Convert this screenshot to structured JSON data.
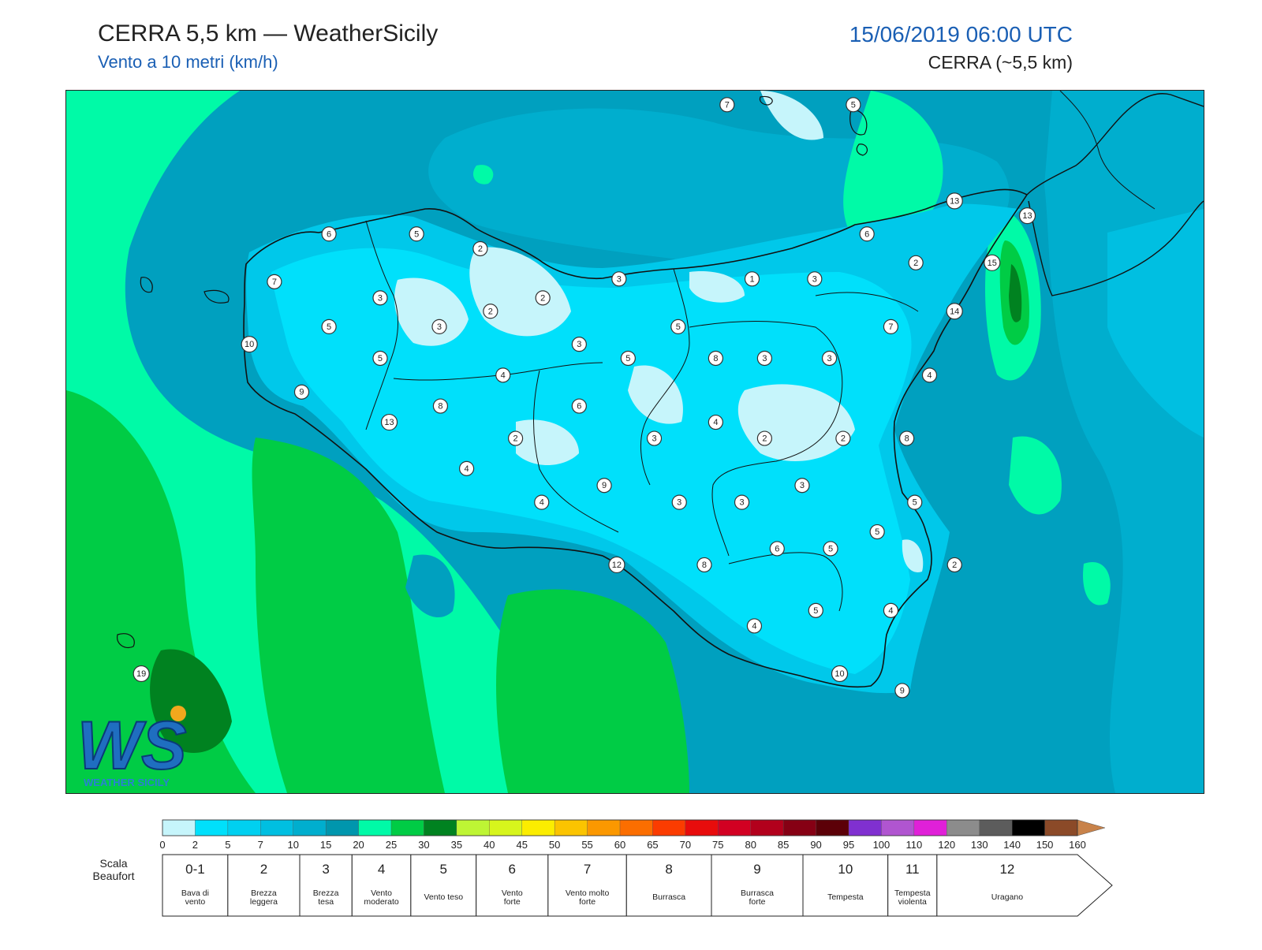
{
  "header": {
    "title": "CERRA 5,5 km — WeatherSicily",
    "subtitle": "Vento a 10 metri (km/h)",
    "datetime": "15/06/2019 06:00 UTC",
    "model": "CERRA (~5,5 km)"
  },
  "logo": {
    "mark": "WS",
    "name": "WEATHER SICILY"
  },
  "stations": [
    {
      "v": "7",
      "lon": 0.581,
      "lat": 0.02
    },
    {
      "v": "5",
      "lon": 0.692,
      "lat": 0.02
    },
    {
      "v": "13",
      "lon": 0.781,
      "lat": 0.157
    },
    {
      "v": "13",
      "lon": 0.845,
      "lat": 0.178
    },
    {
      "v": "6",
      "lon": 0.231,
      "lat": 0.204
    },
    {
      "v": "5",
      "lon": 0.308,
      "lat": 0.204
    },
    {
      "v": "2",
      "lon": 0.364,
      "lat": 0.225
    },
    {
      "v": "6",
      "lon": 0.704,
      "lat": 0.204
    },
    {
      "v": "2",
      "lon": 0.747,
      "lat": 0.245
    },
    {
      "v": "15",
      "lon": 0.814,
      "lat": 0.245
    },
    {
      "v": "7",
      "lon": 0.183,
      "lat": 0.272
    },
    {
      "v": "3",
      "lon": 0.486,
      "lat": 0.268
    },
    {
      "v": "1",
      "lon": 0.603,
      "lat": 0.268
    },
    {
      "v": "3",
      "lon": 0.658,
      "lat": 0.268
    },
    {
      "v": "3",
      "lon": 0.276,
      "lat": 0.295
    },
    {
      "v": "2",
      "lon": 0.419,
      "lat": 0.295
    },
    {
      "v": "14",
      "lon": 0.781,
      "lat": 0.314
    },
    {
      "v": "2",
      "lon": 0.373,
      "lat": 0.314
    },
    {
      "v": "5",
      "lon": 0.231,
      "lat": 0.336
    },
    {
      "v": "3",
      "lon": 0.328,
      "lat": 0.336
    },
    {
      "v": "5",
      "lon": 0.538,
      "lat": 0.336
    },
    {
      "v": "7",
      "lon": 0.725,
      "lat": 0.336
    },
    {
      "v": "10",
      "lon": 0.161,
      "lat": 0.361
    },
    {
      "v": "3",
      "lon": 0.451,
      "lat": 0.361
    },
    {
      "v": "5",
      "lon": 0.276,
      "lat": 0.381
    },
    {
      "v": "5",
      "lon": 0.494,
      "lat": 0.381
    },
    {
      "v": "8",
      "lon": 0.571,
      "lat": 0.381
    },
    {
      "v": "3",
      "lon": 0.614,
      "lat": 0.381
    },
    {
      "v": "3",
      "lon": 0.671,
      "lat": 0.381
    },
    {
      "v": "4",
      "lon": 0.384,
      "lat": 0.405
    },
    {
      "v": "4",
      "lon": 0.759,
      "lat": 0.405
    },
    {
      "v": "9",
      "lon": 0.207,
      "lat": 0.429
    },
    {
      "v": "8",
      "lon": 0.329,
      "lat": 0.449
    },
    {
      "v": "6",
      "lon": 0.451,
      "lat": 0.449
    },
    {
      "v": "13",
      "lon": 0.284,
      "lat": 0.472
    },
    {
      "v": "4",
      "lon": 0.571,
      "lat": 0.472
    },
    {
      "v": "2",
      "lon": 0.395,
      "lat": 0.495
    },
    {
      "v": "3",
      "lon": 0.517,
      "lat": 0.495
    },
    {
      "v": "2",
      "lon": 0.614,
      "lat": 0.495
    },
    {
      "v": "2",
      "lon": 0.683,
      "lat": 0.495
    },
    {
      "v": "8",
      "lon": 0.739,
      "lat": 0.495
    },
    {
      "v": "4",
      "lon": 0.352,
      "lat": 0.538
    },
    {
      "v": "9",
      "lon": 0.473,
      "lat": 0.562
    },
    {
      "v": "3",
      "lon": 0.647,
      "lat": 0.562
    },
    {
      "v": "4",
      "lon": 0.418,
      "lat": 0.586
    },
    {
      "v": "3",
      "lon": 0.539,
      "lat": 0.586
    },
    {
      "v": "3",
      "lon": 0.594,
      "lat": 0.586
    },
    {
      "v": "5",
      "lon": 0.746,
      "lat": 0.586
    },
    {
      "v": "5",
      "lon": 0.713,
      "lat": 0.628
    },
    {
      "v": "6",
      "lon": 0.625,
      "lat": 0.652
    },
    {
      "v": "5",
      "lon": 0.672,
      "lat": 0.652
    },
    {
      "v": "12",
      "lon": 0.484,
      "lat": 0.675
    },
    {
      "v": "8",
      "lon": 0.561,
      "lat": 0.675
    },
    {
      "v": "2",
      "lon": 0.781,
      "lat": 0.675
    },
    {
      "v": "5",
      "lon": 0.659,
      "lat": 0.74
    },
    {
      "v": "4",
      "lon": 0.725,
      "lat": 0.74
    },
    {
      "v": "4",
      "lon": 0.605,
      "lat": 0.762
    },
    {
      "v": "19",
      "lon": 0.066,
      "lat": 0.83
    },
    {
      "v": "10",
      "lon": 0.68,
      "lat": 0.83
    },
    {
      "v": "9",
      "lon": 0.735,
      "lat": 0.854
    }
  ],
  "colorbar": {
    "bins": [
      {
        "v": "0",
        "c": "#c6f5fb"
      },
      {
        "v": "2",
        "c": "#00e0fb"
      },
      {
        "v": "5",
        "c": "#00d0f0"
      },
      {
        "v": "7",
        "c": "#00bfe1"
      },
      {
        "v": "10",
        "c": "#00aece"
      },
      {
        "v": "15",
        "c": "#0096ad"
      },
      {
        "v": "20",
        "c": "#00faa7"
      },
      {
        "v": "25",
        "c": "#00cc45"
      },
      {
        "v": "30",
        "c": "#008220"
      },
      {
        "v": "35",
        "c": "#bef534"
      },
      {
        "v": "40",
        "c": "#d7f51c"
      },
      {
        "v": "45",
        "c": "#fbed00"
      },
      {
        "v": "50",
        "c": "#fbc400"
      },
      {
        "v": "55",
        "c": "#fb9800"
      },
      {
        "v": "60",
        "c": "#fb6e00"
      },
      {
        "v": "65",
        "c": "#fb3c00"
      },
      {
        "v": "70",
        "c": "#e80c0c"
      },
      {
        "v": "75",
        "c": "#d20022"
      },
      {
        "v": "80",
        "c": "#b2001c"
      },
      {
        "v": "85",
        "c": "#860014"
      },
      {
        "v": "90",
        "c": "#5c0008"
      },
      {
        "v": "95",
        "c": "#8030d0"
      },
      {
        "v": "100",
        "c": "#b055d0"
      },
      {
        "v": "110",
        "c": "#e020d8"
      },
      {
        "v": "120",
        "c": "#8c8c8c"
      },
      {
        "v": "130",
        "c": "#5c5c5c"
      },
      {
        "v": "140",
        "c": "#000000"
      },
      {
        "v": "150",
        "c": "#8b4a28"
      },
      {
        "v": "160",
        "c": "#c8824a"
      }
    ]
  },
  "beaufort": {
    "title_line1": "Scala",
    "title_line2": "Beaufort",
    "classes": [
      {
        "n": "0-1",
        "l1": "Bava di",
        "l2": "vento"
      },
      {
        "n": "2",
        "l1": "Brezza",
        "l2": "leggera"
      },
      {
        "n": "3",
        "l1": "Brezza",
        "l2": "tesa"
      },
      {
        "n": "4",
        "l1": "Vento",
        "l2": "moderato"
      },
      {
        "n": "5",
        "l1": "Vento teso",
        "l2": ""
      },
      {
        "n": "6",
        "l1": "Vento",
        "l2": "forte"
      },
      {
        "n": "7",
        "l1": "Vento molto",
        "l2": "forte"
      },
      {
        "n": "8",
        "l1": "Burrasca",
        "l2": ""
      },
      {
        "n": "9",
        "l1": "Burrasca",
        "l2": "forte"
      },
      {
        "n": "10",
        "l1": "Tempesta",
        "l2": ""
      },
      {
        "n": "11",
        "l1": "Tempesta",
        "l2": "violenta"
      },
      {
        "n": "12",
        "l1": "Uragano",
        "l2": ""
      }
    ]
  }
}
